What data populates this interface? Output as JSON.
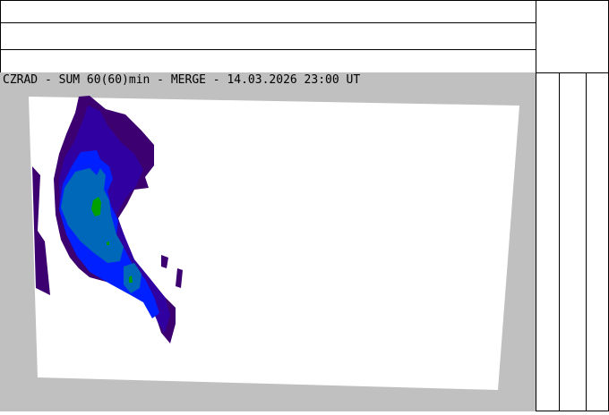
{
  "map": {
    "title": "CZRAD - SUM 60(60)min - MERGE - 14.03.2026 23:00 UT",
    "colors": {
      "background": "#c0c0c0",
      "coverage": "#ffffff",
      "level1": "#3c0070",
      "level2": "#3000a0",
      "level3": "#0020ff",
      "level4": "#0068b8",
      "level5": "#00a000"
    }
  }
}
